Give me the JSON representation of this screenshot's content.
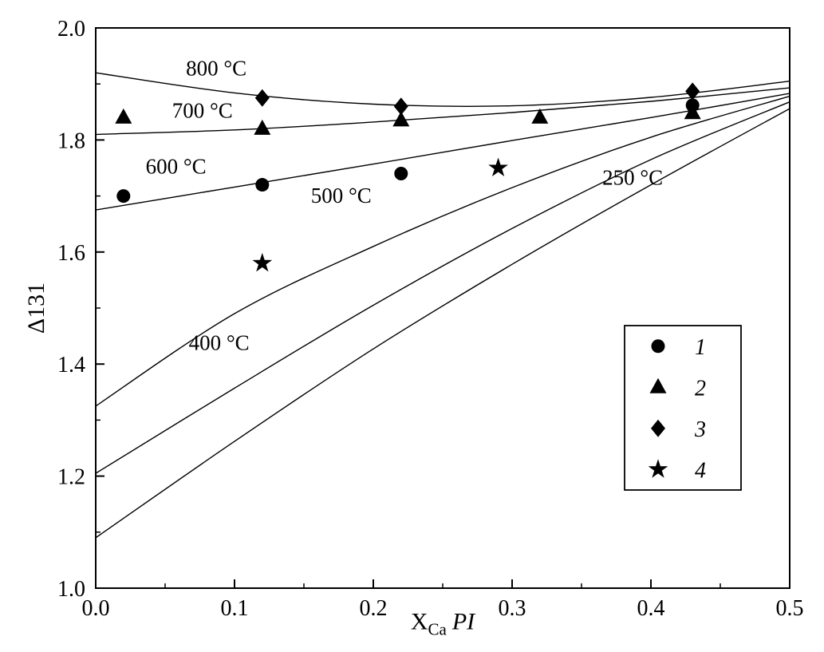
{
  "figure": {
    "background": "#ffffff",
    "ink_color": "#000000"
  },
  "chart_data": {
    "type": "line",
    "title": "",
    "xlabel_parts": {
      "main": "X",
      "sub": "Ca",
      "italic": "PI"
    },
    "ylabel": "Δ131",
    "xlim": [
      0,
      0.5
    ],
    "ylim": [
      1.0,
      2.0
    ],
    "x_ticks": [
      "0.0",
      "0.1",
      "0.2",
      "0.3",
      "0.4",
      "0.5"
    ],
    "x_tick_values": [
      0,
      0.1,
      0.2,
      0.3,
      0.4,
      0.5
    ],
    "y_ticks": [
      "1.0",
      "1.2",
      "1.4",
      "1.6",
      "1.8",
      "2.0"
    ],
    "y_tick_values": [
      1.0,
      1.2,
      1.4,
      1.6,
      1.8,
      2.0
    ],
    "x_minor_step": 0.05,
    "y_minor_step": 0.1,
    "grid": false,
    "isotherms": [
      {
        "label": "800 °C",
        "label_pos": [
          0.065,
          1.915
        ],
        "points": [
          [
            0,
            1.92
          ],
          [
            0.1,
            1.884
          ],
          [
            0.2,
            1.864
          ],
          [
            0.3,
            1.861
          ],
          [
            0.4,
            1.876
          ],
          [
            0.5,
            1.905
          ]
        ]
      },
      {
        "label": "700 °C",
        "label_pos": [
          0.055,
          1.84
        ],
        "points": [
          [
            0,
            1.81
          ],
          [
            0.1,
            1.818
          ],
          [
            0.2,
            1.832
          ],
          [
            0.3,
            1.849
          ],
          [
            0.4,
            1.869
          ],
          [
            0.5,
            1.893
          ]
        ]
      },
      {
        "label": "600 °C",
        "label_pos": [
          0.036,
          1.74
        ],
        "points": [
          [
            0,
            1.675
          ],
          [
            0.1,
            1.716
          ],
          [
            0.2,
            1.757
          ],
          [
            0.3,
            1.799
          ],
          [
            0.4,
            1.84
          ],
          [
            0.5,
            1.883
          ]
        ]
      },
      {
        "label": "500 °C",
        "label_pos": [
          0.155,
          1.688
        ],
        "points": [
          [
            0,
            1.325
          ],
          [
            0.1,
            1.49
          ],
          [
            0.2,
            1.61
          ],
          [
            0.3,
            1.715
          ],
          [
            0.4,
            1.805
          ],
          [
            0.5,
            1.878
          ]
        ]
      },
      {
        "label": "400 °C",
        "label_pos": [
          0.067,
          1.425
        ],
        "points": [
          [
            0,
            1.205
          ],
          [
            0.1,
            1.357
          ],
          [
            0.2,
            1.505
          ],
          [
            0.3,
            1.642
          ],
          [
            0.4,
            1.765
          ],
          [
            0.5,
            1.868
          ]
        ]
      },
      {
        "label": "250 °C",
        "label_pos": [
          0.365,
          1.72
        ],
        "points": [
          [
            0,
            1.09
          ],
          [
            0.1,
            1.262
          ],
          [
            0.2,
            1.427
          ],
          [
            0.3,
            1.578
          ],
          [
            0.4,
            1.72
          ],
          [
            0.5,
            1.856
          ]
        ]
      }
    ],
    "series": [
      {
        "name": "1",
        "marker": "circle",
        "points": [
          [
            0.02,
            1.7
          ],
          [
            0.12,
            1.72
          ],
          [
            0.22,
            1.74
          ],
          [
            0.43,
            1.862
          ]
        ]
      },
      {
        "name": "2",
        "marker": "triangle",
        "points": [
          [
            0.02,
            1.84
          ],
          [
            0.12,
            1.82
          ],
          [
            0.22,
            1.835
          ],
          [
            0.32,
            1.84
          ],
          [
            0.43,
            1.848
          ]
        ]
      },
      {
        "name": "3",
        "marker": "diamond",
        "points": [
          [
            0.12,
            1.875
          ],
          [
            0.22,
            1.86
          ],
          [
            0.43,
            1.887
          ]
        ]
      },
      {
        "name": "4",
        "marker": "star",
        "points": [
          [
            0.12,
            1.58
          ],
          [
            0.29,
            1.75
          ]
        ]
      }
    ],
    "legend": {
      "position": "lower-right",
      "entries": [
        {
          "marker": "circle",
          "label": "1"
        },
        {
          "marker": "triangle",
          "label": "2"
        },
        {
          "marker": "diamond",
          "label": "3"
        },
        {
          "marker": "star",
          "label": "4"
        }
      ]
    }
  }
}
